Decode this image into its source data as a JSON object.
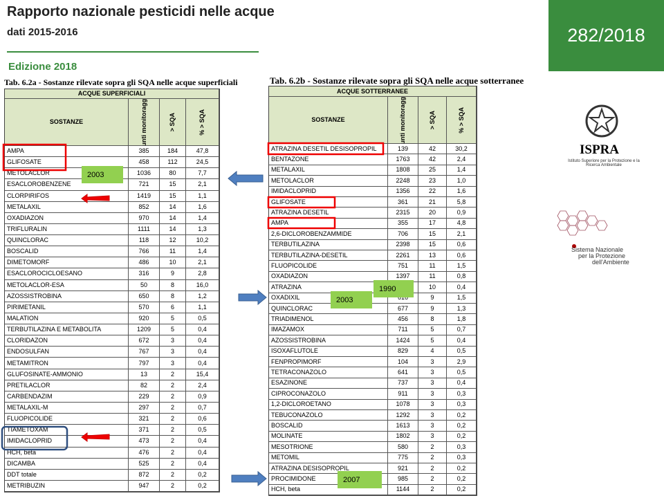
{
  "header": {
    "title": "Rapporto nazionale pesticidi nelle acque",
    "subtitle": "dati 2015-2016",
    "edition": "Edizione 2018",
    "code": "282/2018"
  },
  "logos": {
    "ispra": "ISPRA",
    "ispra_full": "Istituto Superiore per la Protezione e la Ricerca Ambientale",
    "snpa_1": "Sistema Nazionale",
    "snpa_2": "per la Protezione",
    "snpa_3": "dell'Ambiente"
  },
  "table_a": {
    "title": "Tab. 6.2a - Sostanze rilevate sopra gli SQA nelle acque superficiali",
    "group": "ACQUE SUPERFICIALI",
    "columns": [
      "SOSTANZE",
      "Punti monitoraggio",
      "> SQA",
      "% > SQA"
    ],
    "rows": [
      [
        "AMPA",
        385,
        184,
        "47,8"
      ],
      [
        "GLIFOSATE",
        458,
        112,
        "24,5"
      ],
      [
        "METOLACLOR",
        1036,
        80,
        "7,7"
      ],
      [
        "ESACLOROBENZENE",
        721,
        15,
        "2,1"
      ],
      [
        "CLORPIRIFOS",
        1419,
        15,
        "1,1"
      ],
      [
        "METALAXIL",
        852,
        14,
        "1,6"
      ],
      [
        "OXADIAZON",
        970,
        14,
        "1,4"
      ],
      [
        "TRIFLURALIN",
        1111,
        14,
        "1,3"
      ],
      [
        "QUINCLORAC",
        118,
        12,
        "10,2"
      ],
      [
        "BOSCALID",
        766,
        11,
        "1,4"
      ],
      [
        "DIMETOMORF",
        486,
        10,
        "2,1"
      ],
      [
        "ESACLOROCICLOESANO",
        316,
        9,
        "2,8"
      ],
      [
        "METOLACLOR-ESA",
        50,
        8,
        "16,0"
      ],
      [
        "AZOSSISTROBINA",
        650,
        8,
        "1,2"
      ],
      [
        "PIRIMETANIL",
        570,
        6,
        "1,1"
      ],
      [
        "MALATION",
        920,
        5,
        "0,5"
      ],
      [
        "TERBUTILAZINA  E METABOLITA",
        1209,
        5,
        "0,4"
      ],
      [
        "CLORIDAZON",
        672,
        3,
        "0,4"
      ],
      [
        "ENDOSULFAN",
        767,
        3,
        "0,4"
      ],
      [
        "METAMITRON",
        797,
        3,
        "0,4"
      ],
      [
        "GLUFOSINATE-AMMONIO",
        13,
        2,
        "15,4"
      ],
      [
        "PRETILACLOR",
        82,
        2,
        "2,4"
      ],
      [
        "CARBENDAZIM",
        229,
        2,
        "0,9"
      ],
      [
        "METALAXIL-M",
        297,
        2,
        "0,7"
      ],
      [
        "FLUOPICOLIDE",
        321,
        2,
        "0,6"
      ],
      [
        "TIAMETOXAM",
        371,
        2,
        "0,5"
      ],
      [
        "IMIDACLOPRID",
        473,
        2,
        "0,4"
      ],
      [
        "HCH, beta",
        476,
        2,
        "0,4"
      ],
      [
        "DICAMBA",
        525,
        2,
        "0,4"
      ],
      [
        "DDT totale",
        872,
        2,
        "0,2"
      ],
      [
        "METRIBUZIN",
        947,
        2,
        "0,2"
      ]
    ]
  },
  "table_b": {
    "title": "Tab. 6.2b - Sostanze rilevate sopra gli SQA nelle acque sotterranee",
    "group": "ACQUE SOTTERRANEE",
    "columns": [
      "SOSTANZE",
      "Punti monitoraggio",
      "> SQA",
      "% > SQA"
    ],
    "rows": [
      [
        "ATRAZINA DESETIL DESISOPROPIL",
        139,
        42,
        "30,2"
      ],
      [
        "BENTAZONE",
        1763,
        42,
        "2,4"
      ],
      [
        "METALAXIL",
        1808,
        25,
        "1,4"
      ],
      [
        "METOLACLOR",
        2248,
        23,
        "1,0"
      ],
      [
        "IMIDACLOPRID",
        1356,
        22,
        "1,6"
      ],
      [
        "GLIFOSATE",
        361,
        21,
        "5,8"
      ],
      [
        "ATRAZINA DESETIL",
        2315,
        20,
        "0,9"
      ],
      [
        "AMPA",
        355,
        17,
        "4,8"
      ],
      [
        "2,6-DICLOROBENZAMMIDE",
        706,
        15,
        "2,1"
      ],
      [
        "TERBUTILAZINA",
        2398,
        15,
        "0,6"
      ],
      [
        "TERBUTILAZINA-DESETIL",
        2261,
        13,
        "0,6"
      ],
      [
        "FLUOPICOLIDE",
        751,
        11,
        "1,5"
      ],
      [
        "OXADIAZON",
        1397,
        11,
        "0,8"
      ],
      [
        "ATRAZINA",
        null,
        10,
        "0,4"
      ],
      [
        "OXADIXIL",
        616,
        9,
        "1,5"
      ],
      [
        "QUINCLORAC",
        677,
        9,
        "1,3"
      ],
      [
        "TRIADIMENOL",
        456,
        8,
        "1,8"
      ],
      [
        "IMAZAMOX",
        711,
        5,
        "0,7"
      ],
      [
        "AZOSSISTROBINA",
        1424,
        5,
        "0,4"
      ],
      [
        "ISOXAFLUTOLE",
        829,
        4,
        "0,5"
      ],
      [
        "FENPROPIMORF",
        104,
        3,
        "2,9"
      ],
      [
        "TETRACONAZOLO",
        641,
        3,
        "0,5"
      ],
      [
        "ESAZINONE",
        737,
        3,
        "0,4"
      ],
      [
        "CIPROCONAZOLO",
        911,
        3,
        "0,3"
      ],
      [
        "1,2-DICLOROETANO",
        1078,
        3,
        "0,3"
      ],
      [
        "TEBUCONAZOLO",
        1292,
        3,
        "0,2"
      ],
      [
        "BOSCALID",
        1613,
        3,
        "0,2"
      ],
      [
        "MOLINATE",
        1802,
        3,
        "0,2"
      ],
      [
        "MESOTRIONE",
        580,
        2,
        "0,3"
      ],
      [
        "METOMIL",
        775,
        2,
        "0,3"
      ],
      [
        "ATRAZINA DESISOPROPIL",
        921,
        2,
        "0,2"
      ],
      [
        "PROCIMIDONE",
        985,
        2,
        "0,2"
      ],
      [
        "HCH, beta",
        1144,
        2,
        "0,2"
      ]
    ]
  },
  "annotations": {
    "a_2003": "2003",
    "b_1990": "1990",
    "b_2003": "2003",
    "b_2007": "2007"
  }
}
